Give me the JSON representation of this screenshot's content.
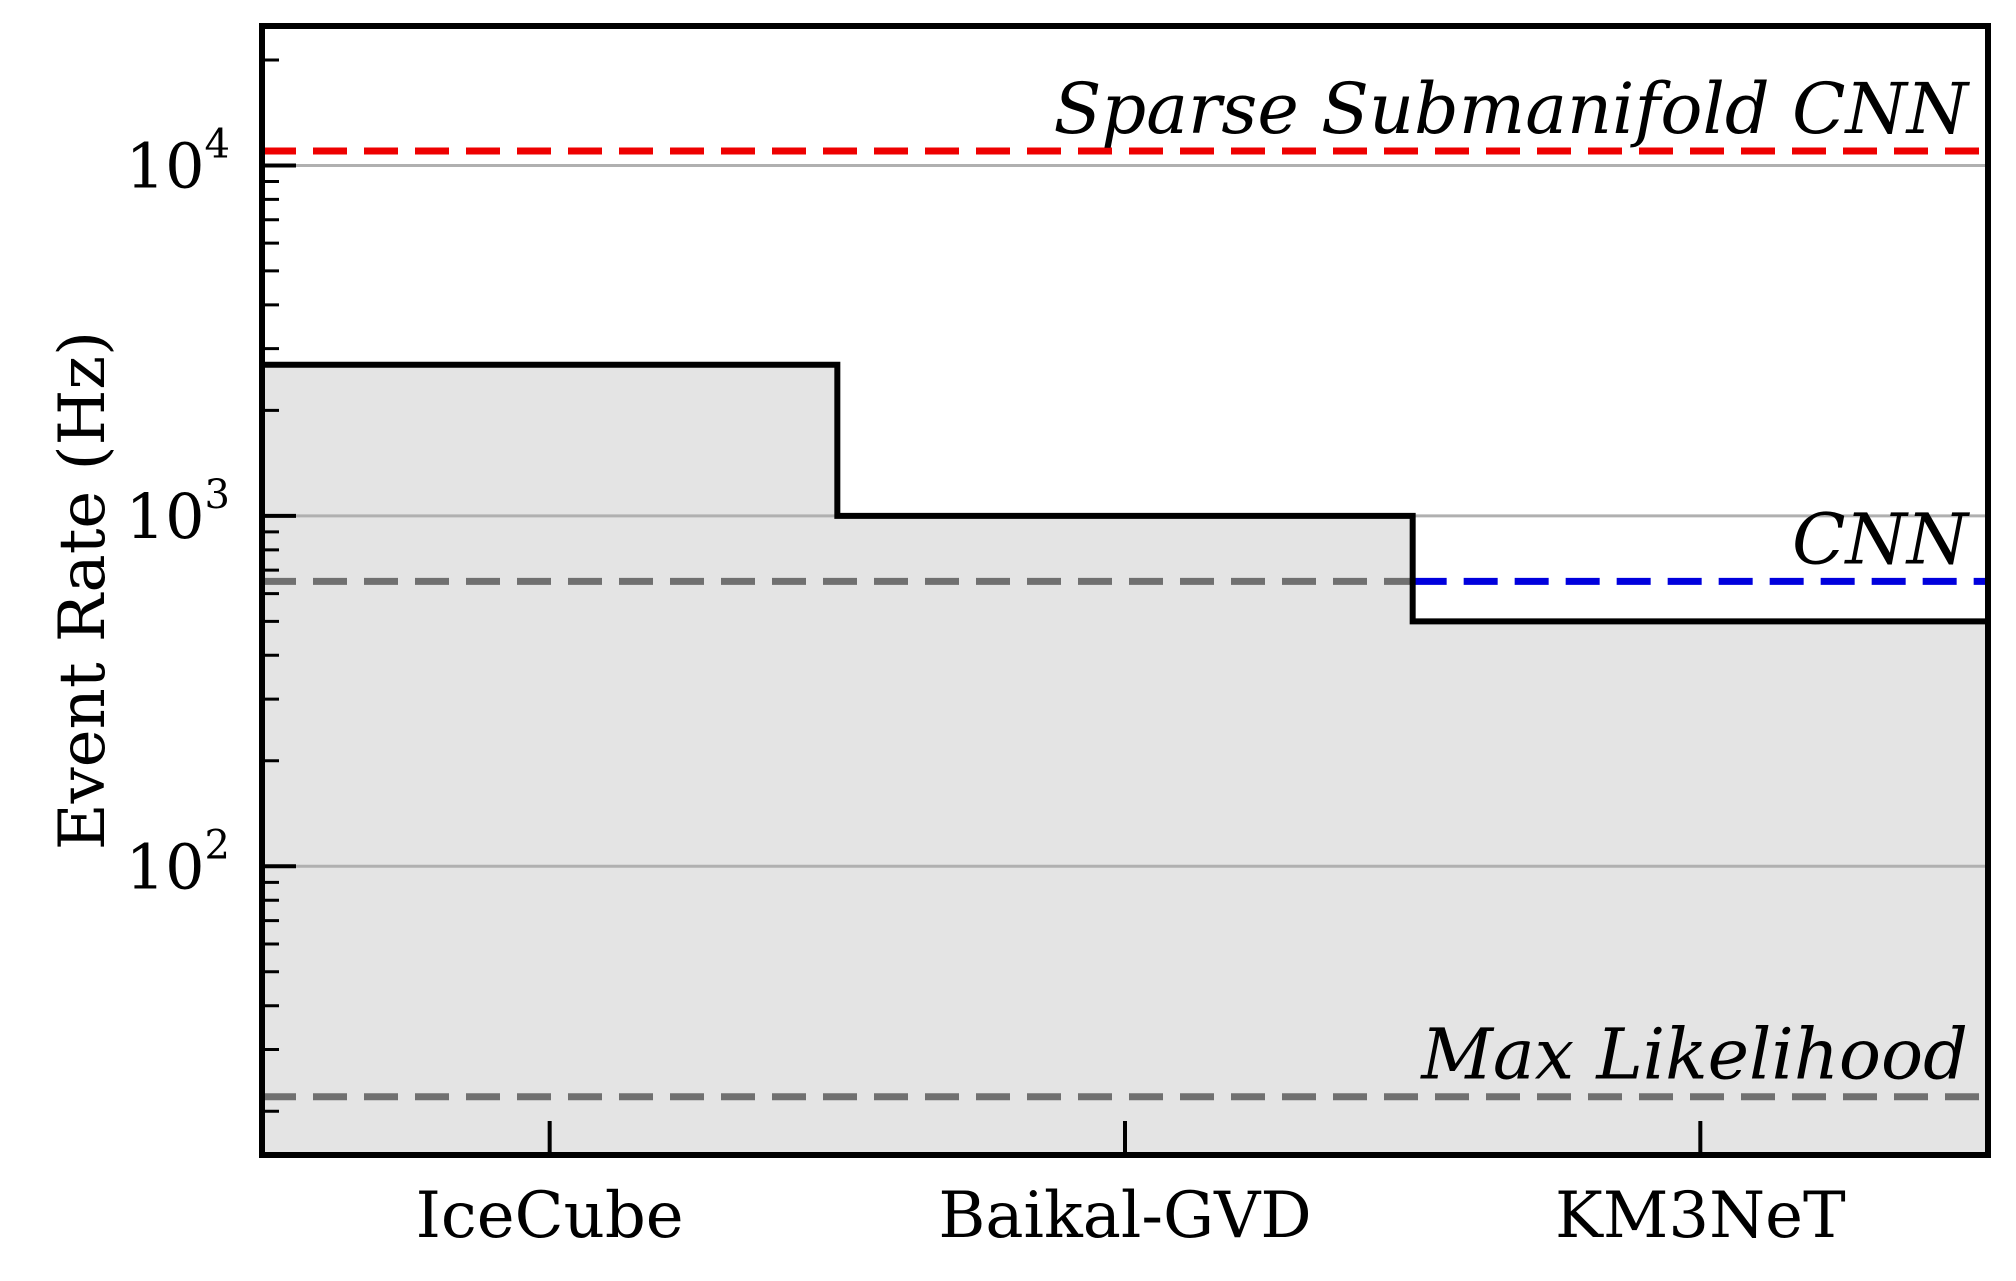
{
  "chart_data": {
    "type": "bar",
    "title": "",
    "xlabel": "",
    "ylabel": "Event Rate (Hz)",
    "yscale": "log",
    "ylim": [
      15,
      25000
    ],
    "grid": "y-major",
    "categories": [
      "IceCube",
      "Baikal-GVD",
      "KM3NeT"
    ],
    "values": [
      2700,
      1000,
      500
    ],
    "y_ticks": [
      {
        "value": 100,
        "base": "10",
        "exp": "2"
      },
      {
        "value": 1000,
        "base": "10",
        "exp": "3"
      },
      {
        "value": 10000,
        "base": "10",
        "exp": "4"
      }
    ],
    "reference_lines": [
      {
        "label": "Sparse Submanifold CNN",
        "value": 11000,
        "color": "#ee0000",
        "extent": "full"
      },
      {
        "label": "CNN",
        "value": 650,
        "color": "#0000dd",
        "extent": "km3net-only",
        "under_fill_color": "#707070"
      },
      {
        "label": "Max Likelihood",
        "value": 22,
        "color": "#707070",
        "extent": "full"
      }
    ],
    "fill_color": "#e4e4e4",
    "step_color": "#000000"
  }
}
